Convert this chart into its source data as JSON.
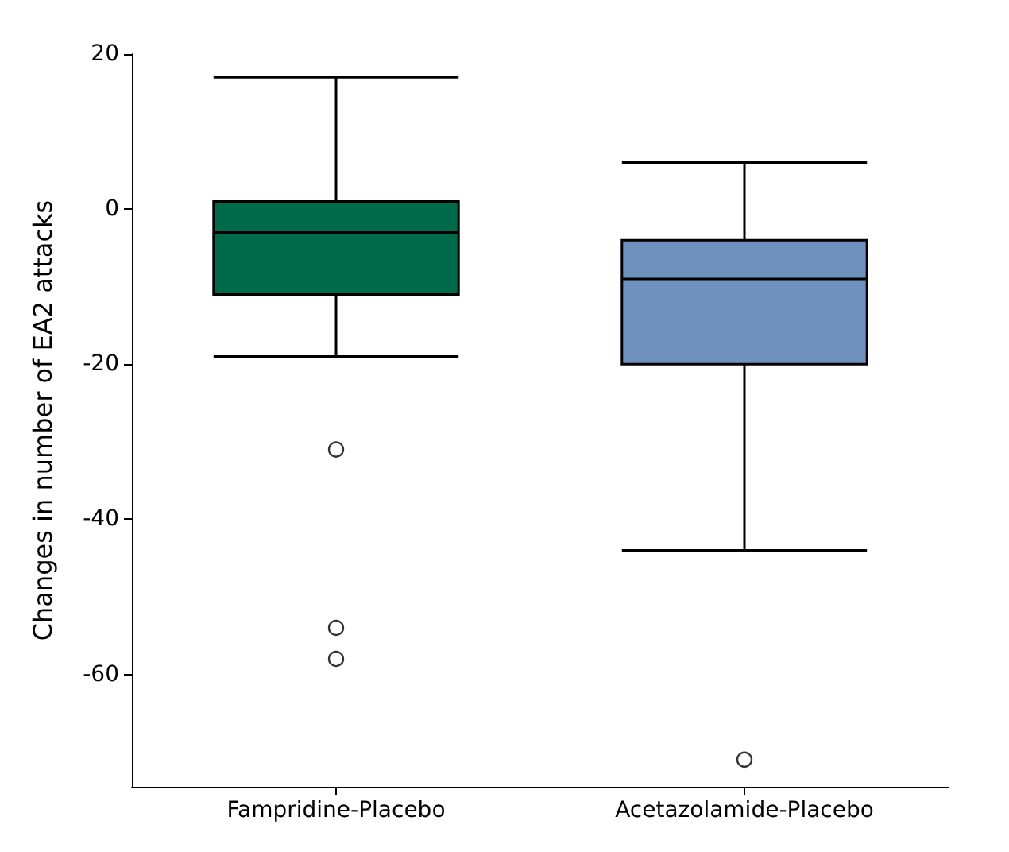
{
  "chart_data": {
    "type": "box",
    "ylabel": "Changes in number of EA2 attacks",
    "categories": [
      "Fampridine-Placebo",
      "Acetazolamide-Placebo"
    ],
    "colors": [
      "#006b4a",
      "#6f91bd"
    ],
    "boxes": [
      {
        "low": -19,
        "q1": -11,
        "median": -3,
        "q3": 1,
        "high": 17,
        "outliers": [
          -31,
          -54,
          -58
        ]
      },
      {
        "low": -44,
        "q1": -20,
        "median": -9,
        "q3": -4,
        "high": 6,
        "outliers": [
          -71
        ]
      }
    ],
    "ylim": [
      -74.5,
      20
    ],
    "yticks": [
      -60,
      -40,
      -20,
      0,
      20
    ],
    "grid": false
  }
}
